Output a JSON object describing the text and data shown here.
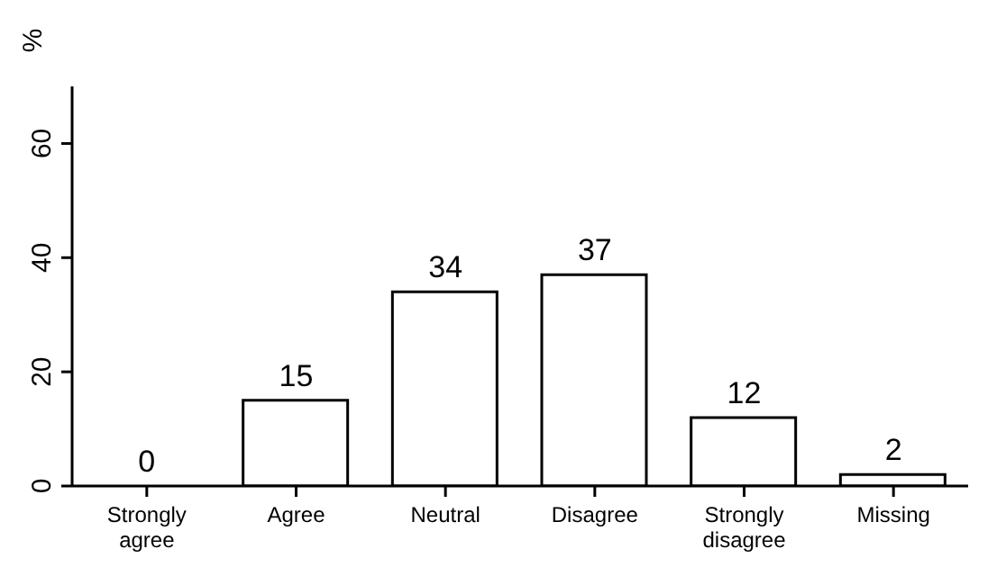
{
  "chart_data": {
    "type": "bar",
    "ylabel": "%",
    "categories": [
      "Strongly agree",
      "Agree",
      "Neutral",
      "Disagree",
      "Strongly disagree",
      "Missing"
    ],
    "values": [
      0,
      15,
      34,
      37,
      12,
      2
    ],
    "color": "#ffffff",
    "ylim": [
      0,
      70
    ],
    "yticks": [
      0,
      20,
      40,
      60
    ],
    "data_labels": true
  }
}
